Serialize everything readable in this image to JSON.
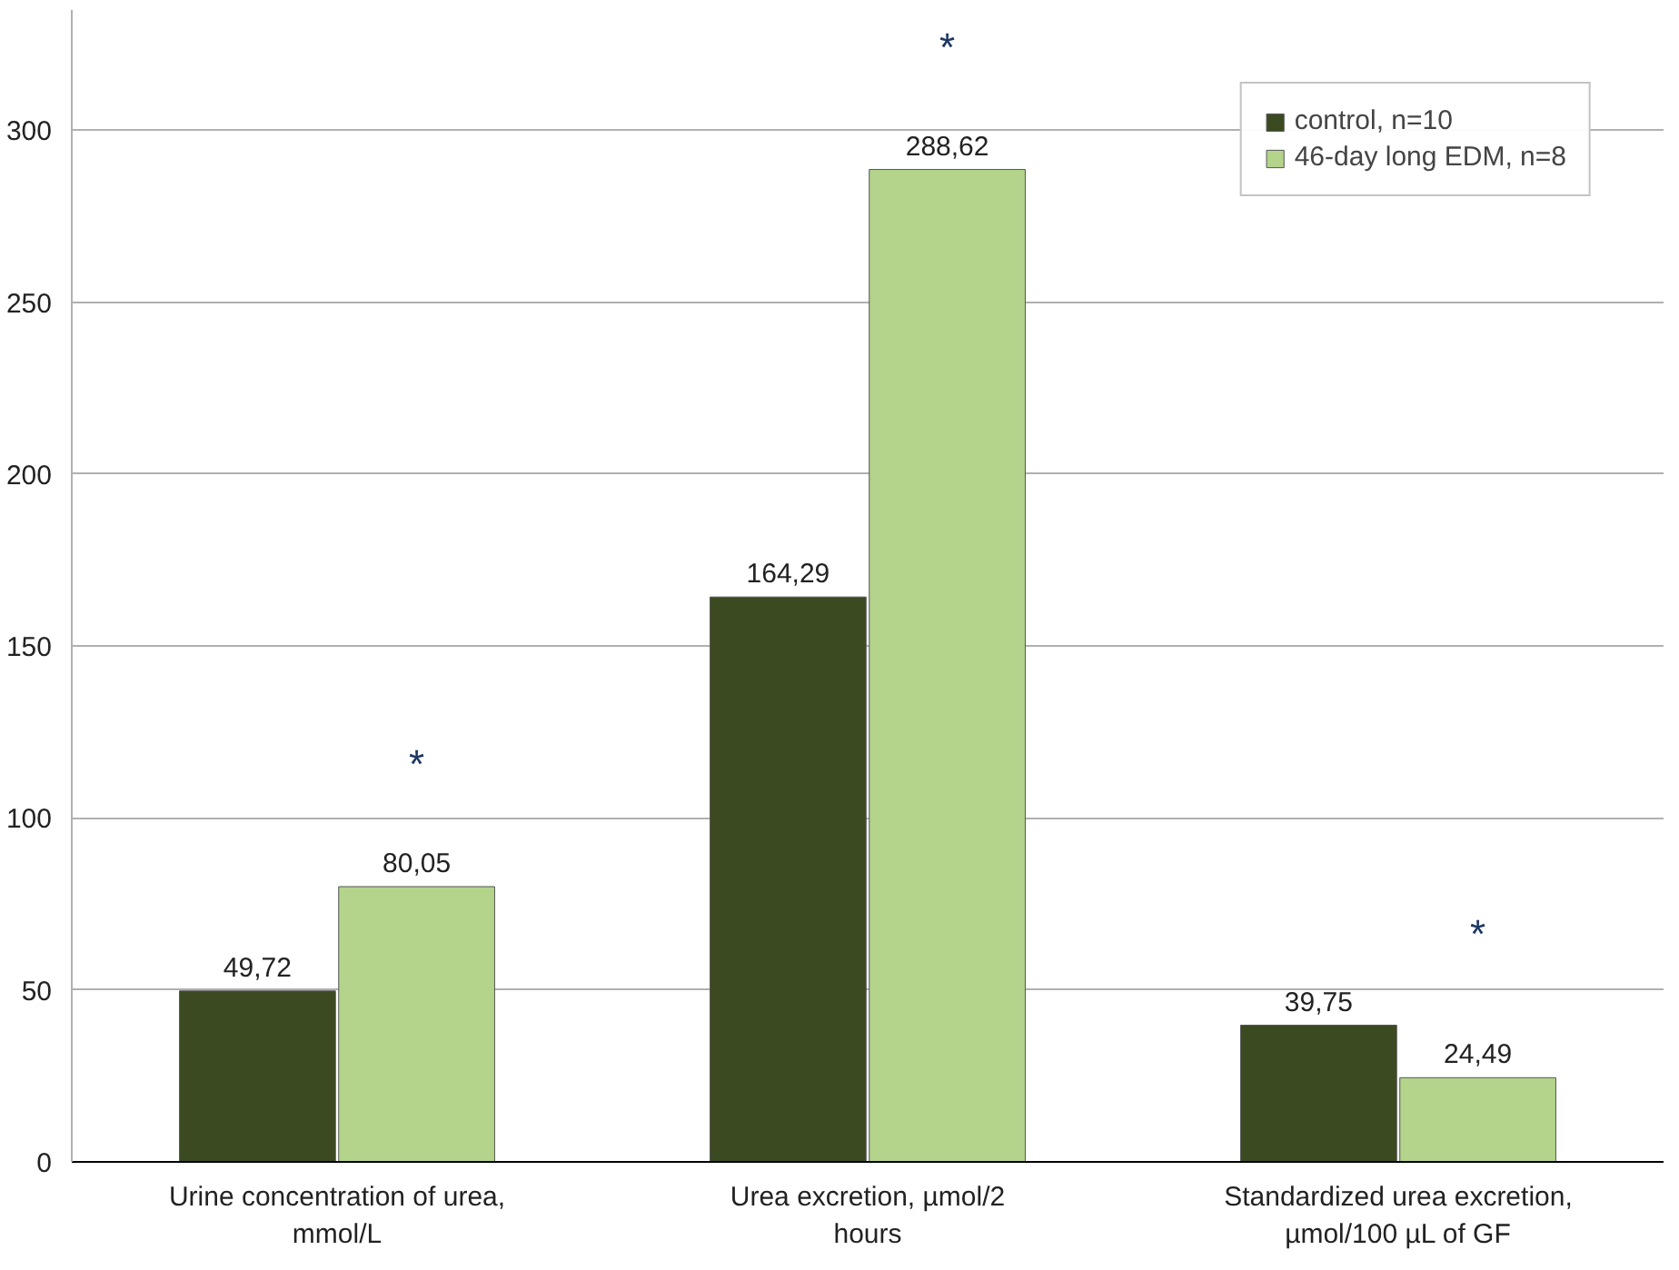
{
  "chart_data": {
    "type": "bar",
    "categories": [
      "Urine concentration of urea,\nmmol/L",
      "Urea excretion, µmol/2\nhours",
      "Standardized urea excretion,\nµmol/100 µL of GF"
    ],
    "series": [
      {
        "name": "control, n=10",
        "color": "#3b4a20",
        "values": [
          49.72,
          164.29,
          39.75
        ],
        "value_labels": [
          "49,72",
          "164,29",
          "39,75"
        ]
      },
      {
        "name": "46-day long EDM, n=8",
        "color": "#b3d48a",
        "values": [
          80.05,
          288.62,
          24.49
        ],
        "value_labels": [
          "80,05",
          "288,62",
          "24,49"
        ]
      }
    ],
    "annotations": [
      "*",
      "*",
      "*"
    ],
    "ylim": [
      0,
      335
    ],
    "yticks": [
      0,
      50,
      100,
      150,
      200,
      250,
      300
    ],
    "grid": "y",
    "legend": "top right"
  }
}
